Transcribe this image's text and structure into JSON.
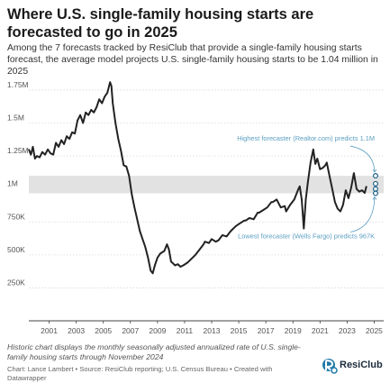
{
  "title": "Where U.S. single-family housing starts are forecasted to go in 2025",
  "subtitle": "Among the 7 forecasts tracked by ResiClub that provide a single-family housing starts forecast, the average model projects U.S. single-family housing starts to be 1.04 million in 2025",
  "notes": "Historic chart displays the monthly seasonally adjusted annualized rate of U.S. single-family housing starts through November 2024",
  "source": "Chart: Lance Lambert • Source: ResiClub reporting; U.S. Census Bureau • Created with Datawrapper",
  "logo_text": "ResiClub",
  "colors": {
    "line": "#222222",
    "band": "#e2e2e2",
    "annotation": "#5a9ec0",
    "grid": "#d9d9d9",
    "tick": "#555555"
  },
  "chart_data": {
    "type": "line",
    "ylim": [
      0,
      1900000
    ],
    "xlim": [
      2000,
      2026.2
    ],
    "y_ticks": [
      {
        "value": 250000,
        "label": "250K"
      },
      {
        "value": 500000,
        "label": "500K"
      },
      {
        "value": 750000,
        "label": "750K"
      },
      {
        "value": 1000000,
        "label": "1M"
      },
      {
        "value": 1250000,
        "label": "1.25M"
      },
      {
        "value": 1500000,
        "label": "1.5M"
      },
      {
        "value": 1750000,
        "label": "1.75M"
      }
    ],
    "x_ticks": [
      "2001",
      "2003",
      "2005",
      "2007",
      "2009",
      "2011",
      "2013",
      "2015",
      "2017",
      "2019",
      "2021",
      "2023",
      "2025"
    ],
    "series": [
      {
        "values": [
          [
            2000.0,
            1300000
          ],
          [
            2000.15,
            1260000
          ],
          [
            2000.3,
            1320000
          ],
          [
            2000.45,
            1230000
          ],
          [
            2000.6,
            1250000
          ],
          [
            2000.8,
            1240000
          ],
          [
            2001.0,
            1280000
          ],
          [
            2001.2,
            1260000
          ],
          [
            2001.4,
            1300000
          ],
          [
            2001.6,
            1270000
          ],
          [
            2001.8,
            1260000
          ],
          [
            2002.0,
            1350000
          ],
          [
            2002.2,
            1320000
          ],
          [
            2002.4,
            1370000
          ],
          [
            2002.6,
            1340000
          ],
          [
            2002.8,
            1400000
          ],
          [
            2003.0,
            1380000
          ],
          [
            2003.2,
            1430000
          ],
          [
            2003.4,
            1420000
          ],
          [
            2003.6,
            1520000
          ],
          [
            2003.8,
            1560000
          ],
          [
            2004.0,
            1500000
          ],
          [
            2004.2,
            1580000
          ],
          [
            2004.4,
            1560000
          ],
          [
            2004.6,
            1600000
          ],
          [
            2004.8,
            1580000
          ],
          [
            2005.0,
            1620000
          ],
          [
            2005.2,
            1680000
          ],
          [
            2005.4,
            1650000
          ],
          [
            2005.6,
            1700000
          ],
          [
            2005.8,
            1730000
          ],
          [
            2006.0,
            1810000
          ],
          [
            2006.1,
            1780000
          ],
          [
            2006.2,
            1650000
          ],
          [
            2006.4,
            1500000
          ],
          [
            2006.6,
            1380000
          ],
          [
            2006.8,
            1290000
          ],
          [
            2007.0,
            1180000
          ],
          [
            2007.2,
            1170000
          ],
          [
            2007.4,
            1100000
          ],
          [
            2007.6,
            960000
          ],
          [
            2007.8,
            860000
          ],
          [
            2008.0,
            770000
          ],
          [
            2008.2,
            680000
          ],
          [
            2008.4,
            620000
          ],
          [
            2008.6,
            560000
          ],
          [
            2008.8,
            480000
          ],
          [
            2009.0,
            380000
          ],
          [
            2009.15,
            360000
          ],
          [
            2009.3,
            420000
          ],
          [
            2009.5,
            480000
          ],
          [
            2009.7,
            510000
          ],
          [
            2010.0,
            530000
          ],
          [
            2010.2,
            580000
          ],
          [
            2010.35,
            540000
          ],
          [
            2010.5,
            450000
          ],
          [
            2010.8,
            420000
          ],
          [
            2011.0,
            430000
          ],
          [
            2011.2,
            410000
          ],
          [
            2011.4,
            420000
          ],
          [
            2011.7,
            440000
          ],
          [
            2011.9,
            460000
          ],
          [
            2012.0,
            470000
          ],
          [
            2012.3,
            500000
          ],
          [
            2012.6,
            540000
          ],
          [
            2012.9,
            580000
          ],
          [
            2013.0,
            600000
          ],
          [
            2013.3,
            590000
          ],
          [
            2013.5,
            620000
          ],
          [
            2013.8,
            600000
          ],
          [
            2014.0,
            610000
          ],
          [
            2014.3,
            650000
          ],
          [
            2014.6,
            640000
          ],
          [
            2014.9,
            680000
          ],
          [
            2015.0,
            690000
          ],
          [
            2015.3,
            720000
          ],
          [
            2015.6,
            740000
          ],
          [
            2015.9,
            760000
          ],
          [
            2016.0,
            760000
          ],
          [
            2016.3,
            780000
          ],
          [
            2016.6,
            770000
          ],
          [
            2016.9,
            820000
          ],
          [
            2017.0,
            820000
          ],
          [
            2017.3,
            840000
          ],
          [
            2017.6,
            860000
          ],
          [
            2017.9,
            900000
          ],
          [
            2018.0,
            900000
          ],
          [
            2018.3,
            920000
          ],
          [
            2018.6,
            860000
          ],
          [
            2018.9,
            870000
          ],
          [
            2019.0,
            830000
          ],
          [
            2019.3,
            880000
          ],
          [
            2019.6,
            920000
          ],
          [
            2019.9,
            1000000
          ],
          [
            2020.0,
            1020000
          ],
          [
            2020.15,
            920000
          ],
          [
            2020.3,
            700000
          ],
          [
            2020.45,
            920000
          ],
          [
            2020.6,
            1050000
          ],
          [
            2020.8,
            1200000
          ],
          [
            2021.0,
            1300000
          ],
          [
            2021.15,
            1190000
          ],
          [
            2021.3,
            1230000
          ],
          [
            2021.5,
            1150000
          ],
          [
            2021.7,
            1160000
          ],
          [
            2021.9,
            1180000
          ],
          [
            2022.0,
            1200000
          ],
          [
            2022.2,
            1100000
          ],
          [
            2022.4,
            1000000
          ],
          [
            2022.6,
            900000
          ],
          [
            2022.8,
            850000
          ],
          [
            2023.0,
            830000
          ],
          [
            2023.2,
            880000
          ],
          [
            2023.4,
            990000
          ],
          [
            2023.6,
            930000
          ],
          [
            2023.8,
            1010000
          ],
          [
            2024.0,
            1120000
          ],
          [
            2024.2,
            1000000
          ],
          [
            2024.4,
            980000
          ],
          [
            2024.6,
            990000
          ],
          [
            2024.8,
            970000
          ],
          [
            2024.92,
            1020000
          ]
        ]
      }
    ],
    "forecast_band": {
      "low": 967000,
      "high": 1100000
    },
    "forecast_points": [
      1100000,
      1040000,
      1000000,
      967000
    ],
    "annotations": [
      {
        "text": "Highest forecaster (Realtor.com) predicts 1.1M"
      },
      {
        "text": "Lowest forecaster (Wells Fargo) predicts 967K"
      }
    ]
  }
}
